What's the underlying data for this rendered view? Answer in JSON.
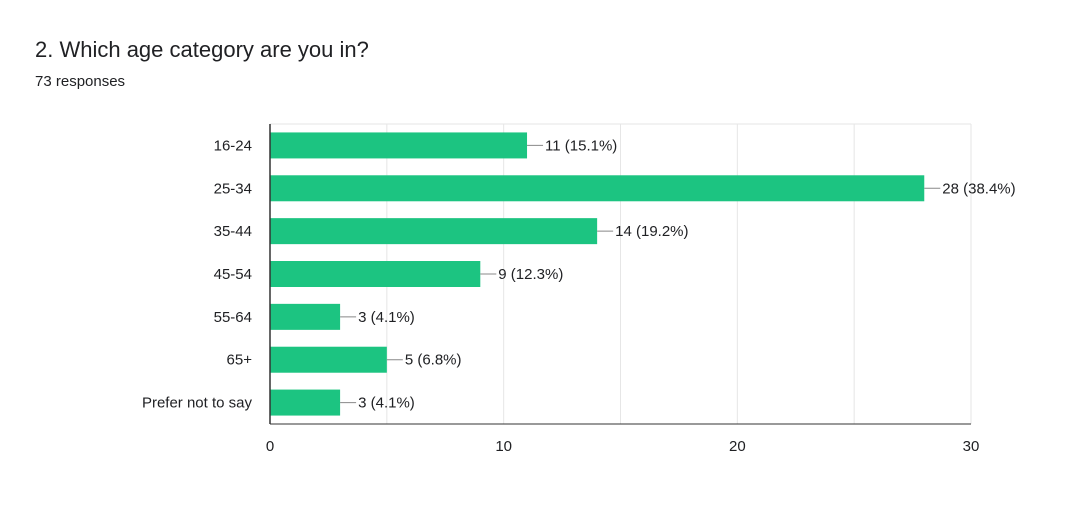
{
  "chart_data": {
    "type": "bar",
    "orientation": "horizontal",
    "title": "2. Which age category are you in?",
    "subtitle": "73 responses",
    "categories": [
      "16-24",
      "25-34",
      "35-44",
      "45-54",
      "55-64",
      "65+",
      "Prefer not to say"
    ],
    "values": [
      11,
      28,
      14,
      9,
      3,
      5,
      3
    ],
    "data_labels": [
      "11 (15.1%)",
      "28 (38.4%)",
      "14 (19.2%)",
      "9 (12.3%)",
      "3 (4.1%)",
      "5 (6.8%)",
      "3 (4.1%)"
    ],
    "xlim": [
      0,
      30
    ],
    "xticks": [
      0,
      10,
      20,
      30
    ],
    "grid": true,
    "legend": "none",
    "bar_color": "#1cc481",
    "grid_color": "#e6e6e6"
  }
}
